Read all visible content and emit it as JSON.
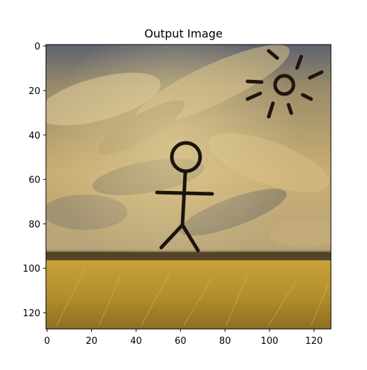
{
  "figure": {
    "title": "Output Image"
  },
  "axes": {
    "x_ticks": [
      "0",
      "20",
      "40",
      "60",
      "80",
      "100",
      "120"
    ],
    "y_ticks": [
      "0",
      "20",
      "40",
      "60",
      "80",
      "100",
      "120"
    ],
    "x_range": [
      0,
      128
    ],
    "y_range": [
      0,
      128
    ],
    "y_inverted": true
  },
  "image": {
    "description_tags": [
      "stylized-painting",
      "stick-figure",
      "sun",
      "cloudy-sky",
      "golden-field"
    ],
    "palette": {
      "sky_light": "#d6c08a",
      "sky_dark": "#6d6a63",
      "field": "#c9a036",
      "field_dark": "#8a6a1e",
      "ink": "#1c140c"
    }
  }
}
